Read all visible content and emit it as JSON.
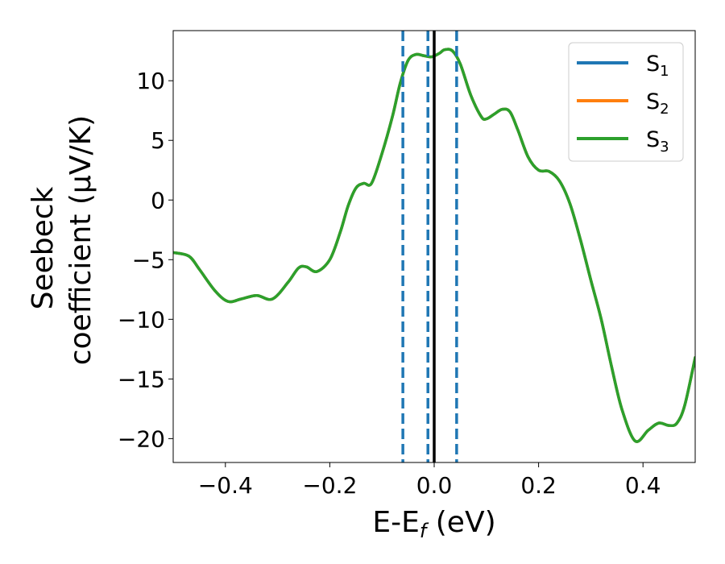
{
  "chart_data": {
    "type": "line",
    "xlabel": {
      "main": "E-E",
      "sub": "f",
      "unit": " (eV)"
    },
    "ylabel": {
      "line1": "Seebeck",
      "line2": "coefficient  (μV/K)"
    },
    "xlim": [
      -0.5,
      0.5
    ],
    "ylim": [
      -22,
      14.2
    ],
    "xticks": [
      -0.4,
      -0.2,
      0.0,
      0.2,
      0.4
    ],
    "xtick_labels": [
      "−0.4",
      "−0.2",
      "0.0",
      "0.2",
      "0.4"
    ],
    "yticks": [
      -20,
      -15,
      -10,
      -5,
      0,
      5,
      10
    ],
    "ytick_labels": [
      "−20",
      "−15",
      "−10",
      "−5",
      "0",
      "5",
      "10"
    ],
    "grid": false,
    "legend_position": "top-right",
    "x": [
      -0.5,
      -0.47,
      -0.45,
      -0.42,
      -0.395,
      -0.37,
      -0.34,
      -0.31,
      -0.28,
      -0.26,
      -0.245,
      -0.225,
      -0.2,
      -0.18,
      -0.165,
      -0.15,
      -0.135,
      -0.12,
      -0.1,
      -0.08,
      -0.065,
      -0.05,
      -0.035,
      -0.02,
      -0.005,
      0.01,
      0.02,
      0.035,
      0.05,
      0.07,
      0.09,
      0.1,
      0.115,
      0.13,
      0.145,
      0.16,
      0.18,
      0.2,
      0.22,
      0.24,
      0.26,
      0.28,
      0.3,
      0.32,
      0.34,
      0.36,
      0.385,
      0.41,
      0.43,
      0.45,
      0.465,
      0.48,
      0.5
    ],
    "series": [
      {
        "name": "S",
        "sub": "1",
        "color": "#1f77b4",
        "values": [
          -4.4,
          -4.7,
          -5.8,
          -7.6,
          -8.5,
          -8.3,
          -8.0,
          -8.3,
          -6.9,
          -5.7,
          -5.6,
          -6.0,
          -5.0,
          -2.7,
          -0.5,
          1.0,
          1.4,
          1.4,
          3.9,
          7.0,
          9.8,
          11.7,
          12.2,
          12.1,
          12.0,
          12.3,
          12.6,
          12.5,
          11.4,
          8.8,
          7.0,
          6.8,
          7.2,
          7.6,
          7.4,
          5.9,
          3.6,
          2.5,
          2.4,
          1.6,
          -0.3,
          -3.3,
          -6.7,
          -10.0,
          -14.0,
          -17.6,
          -20.2,
          -19.3,
          -18.7,
          -18.9,
          -18.7,
          -17.2,
          -13.2
        ]
      },
      {
        "name": "S",
        "sub": "2",
        "color": "#ff7f0e",
        "values": [
          -4.4,
          -4.7,
          -5.8,
          -7.6,
          -8.5,
          -8.3,
          -8.0,
          -8.3,
          -6.9,
          -5.7,
          -5.6,
          -6.0,
          -5.0,
          -2.7,
          -0.5,
          1.0,
          1.4,
          1.4,
          3.9,
          7.0,
          9.8,
          11.7,
          12.2,
          12.1,
          12.0,
          12.3,
          12.6,
          12.5,
          11.4,
          8.8,
          7.0,
          6.8,
          7.2,
          7.6,
          7.4,
          5.9,
          3.6,
          2.5,
          2.4,
          1.6,
          -0.3,
          -3.3,
          -6.7,
          -10.0,
          -14.0,
          -17.6,
          -20.2,
          -19.3,
          -18.7,
          -18.9,
          -18.7,
          -17.2,
          -13.2
        ]
      },
      {
        "name": "S",
        "sub": "3",
        "color": "#2ca02c",
        "values": [
          -4.4,
          -4.7,
          -5.8,
          -7.6,
          -8.5,
          -8.3,
          -8.0,
          -8.3,
          -6.9,
          -5.7,
          -5.6,
          -6.0,
          -5.0,
          -2.7,
          -0.5,
          1.0,
          1.4,
          1.4,
          3.9,
          7.0,
          9.8,
          11.7,
          12.2,
          12.1,
          12.0,
          12.3,
          12.6,
          12.5,
          11.4,
          8.8,
          7.0,
          6.8,
          7.2,
          7.6,
          7.4,
          5.9,
          3.6,
          2.5,
          2.4,
          1.6,
          -0.3,
          -3.3,
          -6.7,
          -10.0,
          -14.0,
          -17.6,
          -20.2,
          -19.3,
          -18.7,
          -18.9,
          -18.7,
          -17.2,
          -13.2
        ]
      }
    ],
    "vlines": [
      {
        "x": -0.06,
        "style": "dashed",
        "color": "#1f77b4"
      },
      {
        "x": -0.012,
        "style": "dashed",
        "color": "#1f77b4"
      },
      {
        "x": 0.0,
        "style": "solid",
        "color": "#000000"
      },
      {
        "x": 0.043,
        "style": "dashed",
        "color": "#1f77b4"
      }
    ]
  }
}
